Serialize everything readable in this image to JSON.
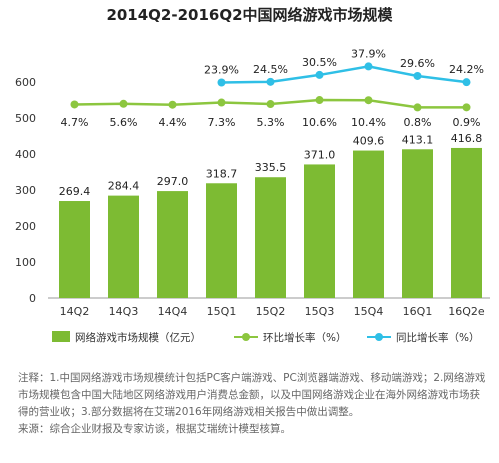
{
  "chart_data": {
    "type": "bar+line",
    "title": "2014Q2-2016Q2中国网络游戏市场规模",
    "categories": [
      "14Q2",
      "14Q3",
      "14Q4",
      "15Q1",
      "15Q2",
      "15Q3",
      "15Q4",
      "16Q1",
      "16Q2e"
    ],
    "ylim": [
      0,
      600
    ],
    "y_ticks": [
      "0",
      "100",
      "200",
      "300",
      "400",
      "500",
      "600"
    ],
    "grid": false,
    "legend_position": "bottom",
    "series": [
      {
        "name": "网络游戏市场规模（亿元）",
        "kind": "bar",
        "color": "#7dbb33",
        "values": [
          269.4,
          284.4,
          297.0,
          318.7,
          335.5,
          371.0,
          409.6,
          413.1,
          416.8
        ],
        "labels": [
          "269.4",
          "284.4",
          "297.0",
          "318.7",
          "335.5",
          "371.0",
          "409.6",
          "413.1",
          "416.8"
        ]
      },
      {
        "name": "环比增长率（%）",
        "kind": "line",
        "color": "#8cc63f",
        "values": [
          4.7,
          5.6,
          4.4,
          7.3,
          5.3,
          10.6,
          10.4,
          0.8,
          0.9
        ],
        "labels": [
          "4.7%",
          "5.6%",
          "4.4%",
          "7.3%",
          "5.3%",
          "10.6%",
          "10.4%",
          "0.8%",
          "0.9%"
        ]
      },
      {
        "name": "同比增长率（%）",
        "kind": "line",
        "color": "#2fbfe6",
        "values": [
          null,
          null,
          null,
          23.9,
          24.5,
          30.5,
          37.9,
          29.6,
          24.2
        ],
        "labels": [
          "",
          "",
          "",
          "23.9%",
          "24.5%",
          "30.5%",
          "37.9%",
          "29.6%",
          "24.2%"
        ]
      }
    ]
  },
  "notes": {
    "line1": "注释：1.中国网络游戏市场规模统计包括PC客户端游戏、PC浏览器端游戏、移动端游戏；2.网络游戏",
    "line2": "市场规模包含中国大陆地区网络游戏用户消费总金额，以及中国网络游戏企业在海外网络游戏市场获",
    "line3": "得的营业收；3.部分数据将在艾瑞2016年网络游戏相关报告中做出调整。",
    "source": "来源：综合企业财报及专家访谈，根据艾瑞统计模型核算。"
  }
}
